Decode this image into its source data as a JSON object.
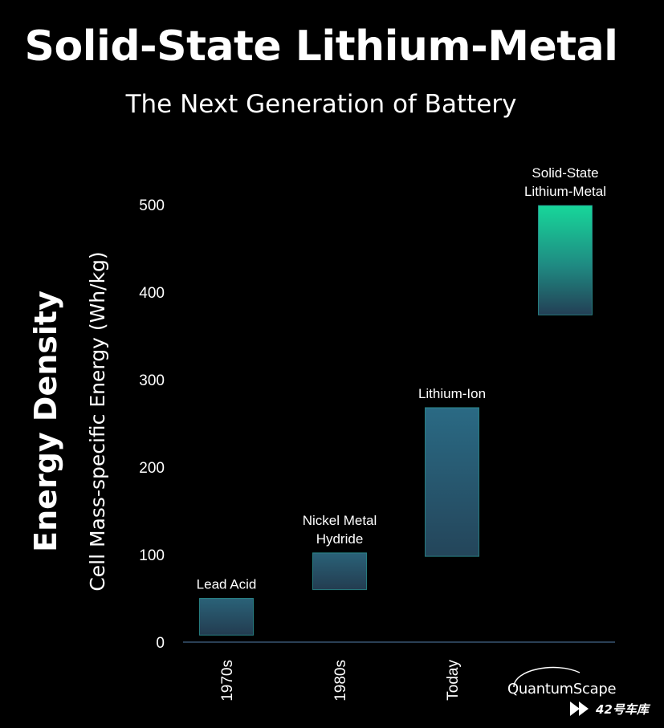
{
  "header": {
    "title": "Solid-State Lithium-Metal",
    "subtitle": "The Next Generation of Battery"
  },
  "chart_data": {
    "type": "bar",
    "chart_kind": "floating range bars",
    "ylabel_main": "Energy Density",
    "ylabel_sub": "Cell Mass-specific Energy (Wh/kg)",
    "ylim": [
      0,
      500
    ],
    "yticks": [
      0,
      100,
      200,
      300,
      400,
      500
    ],
    "grid": false,
    "categories": [
      "1970s",
      "1980s",
      "Today",
      ""
    ],
    "bars": [
      {
        "label": "Lead Acid",
        "low": 8,
        "high": 50
      },
      {
        "label": "Nickel Metal Hydride",
        "label_lines": [
          "Nickel Metal",
          "Hydride"
        ],
        "low": 60,
        "high": 102
      },
      {
        "label": "Lithium-Ion",
        "low": 98,
        "high": 268
      },
      {
        "label": "Solid-State Lithium-Metal",
        "label_lines": [
          "Solid-State",
          "Lithium-Metal"
        ],
        "low": 374,
        "high": 499
      }
    ],
    "colors": {
      "bar_dark": "#243f52",
      "bar_mid": "#2a6a82",
      "bar_teal": "#1fb78d",
      "bar_bright": "#17d79a",
      "bar_edge": "#2f9fa0",
      "axis": "#2a3f55"
    }
  },
  "branding": {
    "logo_text": "QuantumScape",
    "watermark_text": "42号车库",
    "watermark_icon": "play-arrows-icon"
  }
}
